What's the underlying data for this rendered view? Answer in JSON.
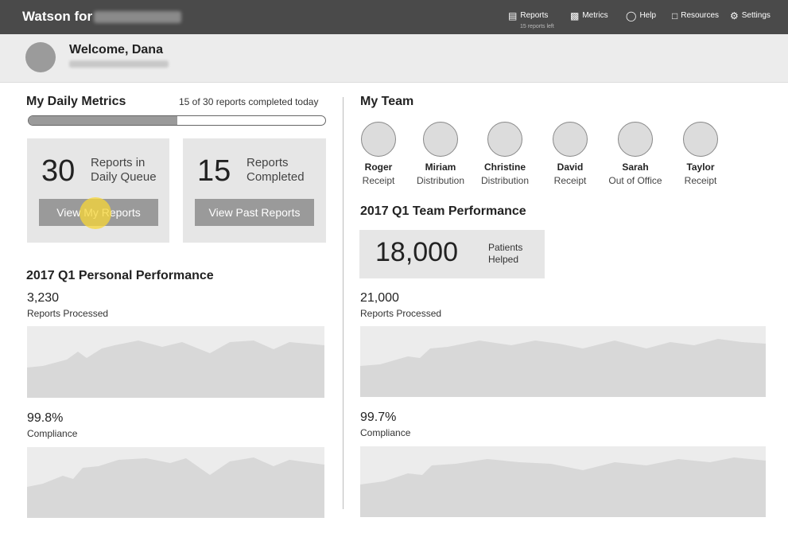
{
  "header": {
    "brand": "Watson for",
    "nav": [
      {
        "label": "Reports",
        "icon": "clipboard-icon",
        "sub": "15 reports left"
      },
      {
        "label": "Metrics",
        "icon": "bar-chart-icon"
      },
      {
        "label": "Help",
        "icon": "lifebuoy-icon"
      },
      {
        "label": "Resources",
        "icon": "bookmark-icon"
      },
      {
        "label": "Settings",
        "icon": "gear-icon"
      }
    ]
  },
  "welcome": {
    "title": "Welcome, Dana"
  },
  "daily": {
    "title": "My Daily Metrics",
    "progress_text": "15 of 30 reports completed today",
    "progress": 0.5,
    "queue": {
      "number": "30",
      "label1": "Reports in",
      "label2": "Daily Queue",
      "button": "View My Reports"
    },
    "completed": {
      "number": "15",
      "label1": "Reports",
      "label2": "Completed",
      "button": "View Past Reports"
    }
  },
  "personal": {
    "title": "2017 Q1 Personal Performance",
    "stats": [
      {
        "value": "3,230",
        "label": "Reports Processed"
      },
      {
        "value": "99.8%",
        "label": "Compliance"
      }
    ]
  },
  "team": {
    "title": "My Team",
    "members": [
      {
        "name": "Roger",
        "role": "Receipt"
      },
      {
        "name": "Miriam",
        "role": "Distribution"
      },
      {
        "name": "Christine",
        "role": "Distribution"
      },
      {
        "name": "David",
        "role": "Receipt"
      },
      {
        "name": "Sarah",
        "role": "Out of Office"
      },
      {
        "name": "Taylor",
        "role": "Receipt"
      }
    ],
    "perf_title": "2017 Q1 Team Performance",
    "patients": {
      "number": "18,000",
      "label1": "Patients",
      "label2": "Helped"
    },
    "stats": [
      {
        "value": "21,000",
        "label": "Reports Processed"
      },
      {
        "value": "99.7%",
        "label": "Compliance"
      }
    ]
  },
  "colors": {
    "topbar": "#4a4a4a",
    "welcome_bg": "#ececec",
    "card_bg": "#e6e6e6",
    "button": "#9a9a9a",
    "cursor": "#f7d636"
  }
}
